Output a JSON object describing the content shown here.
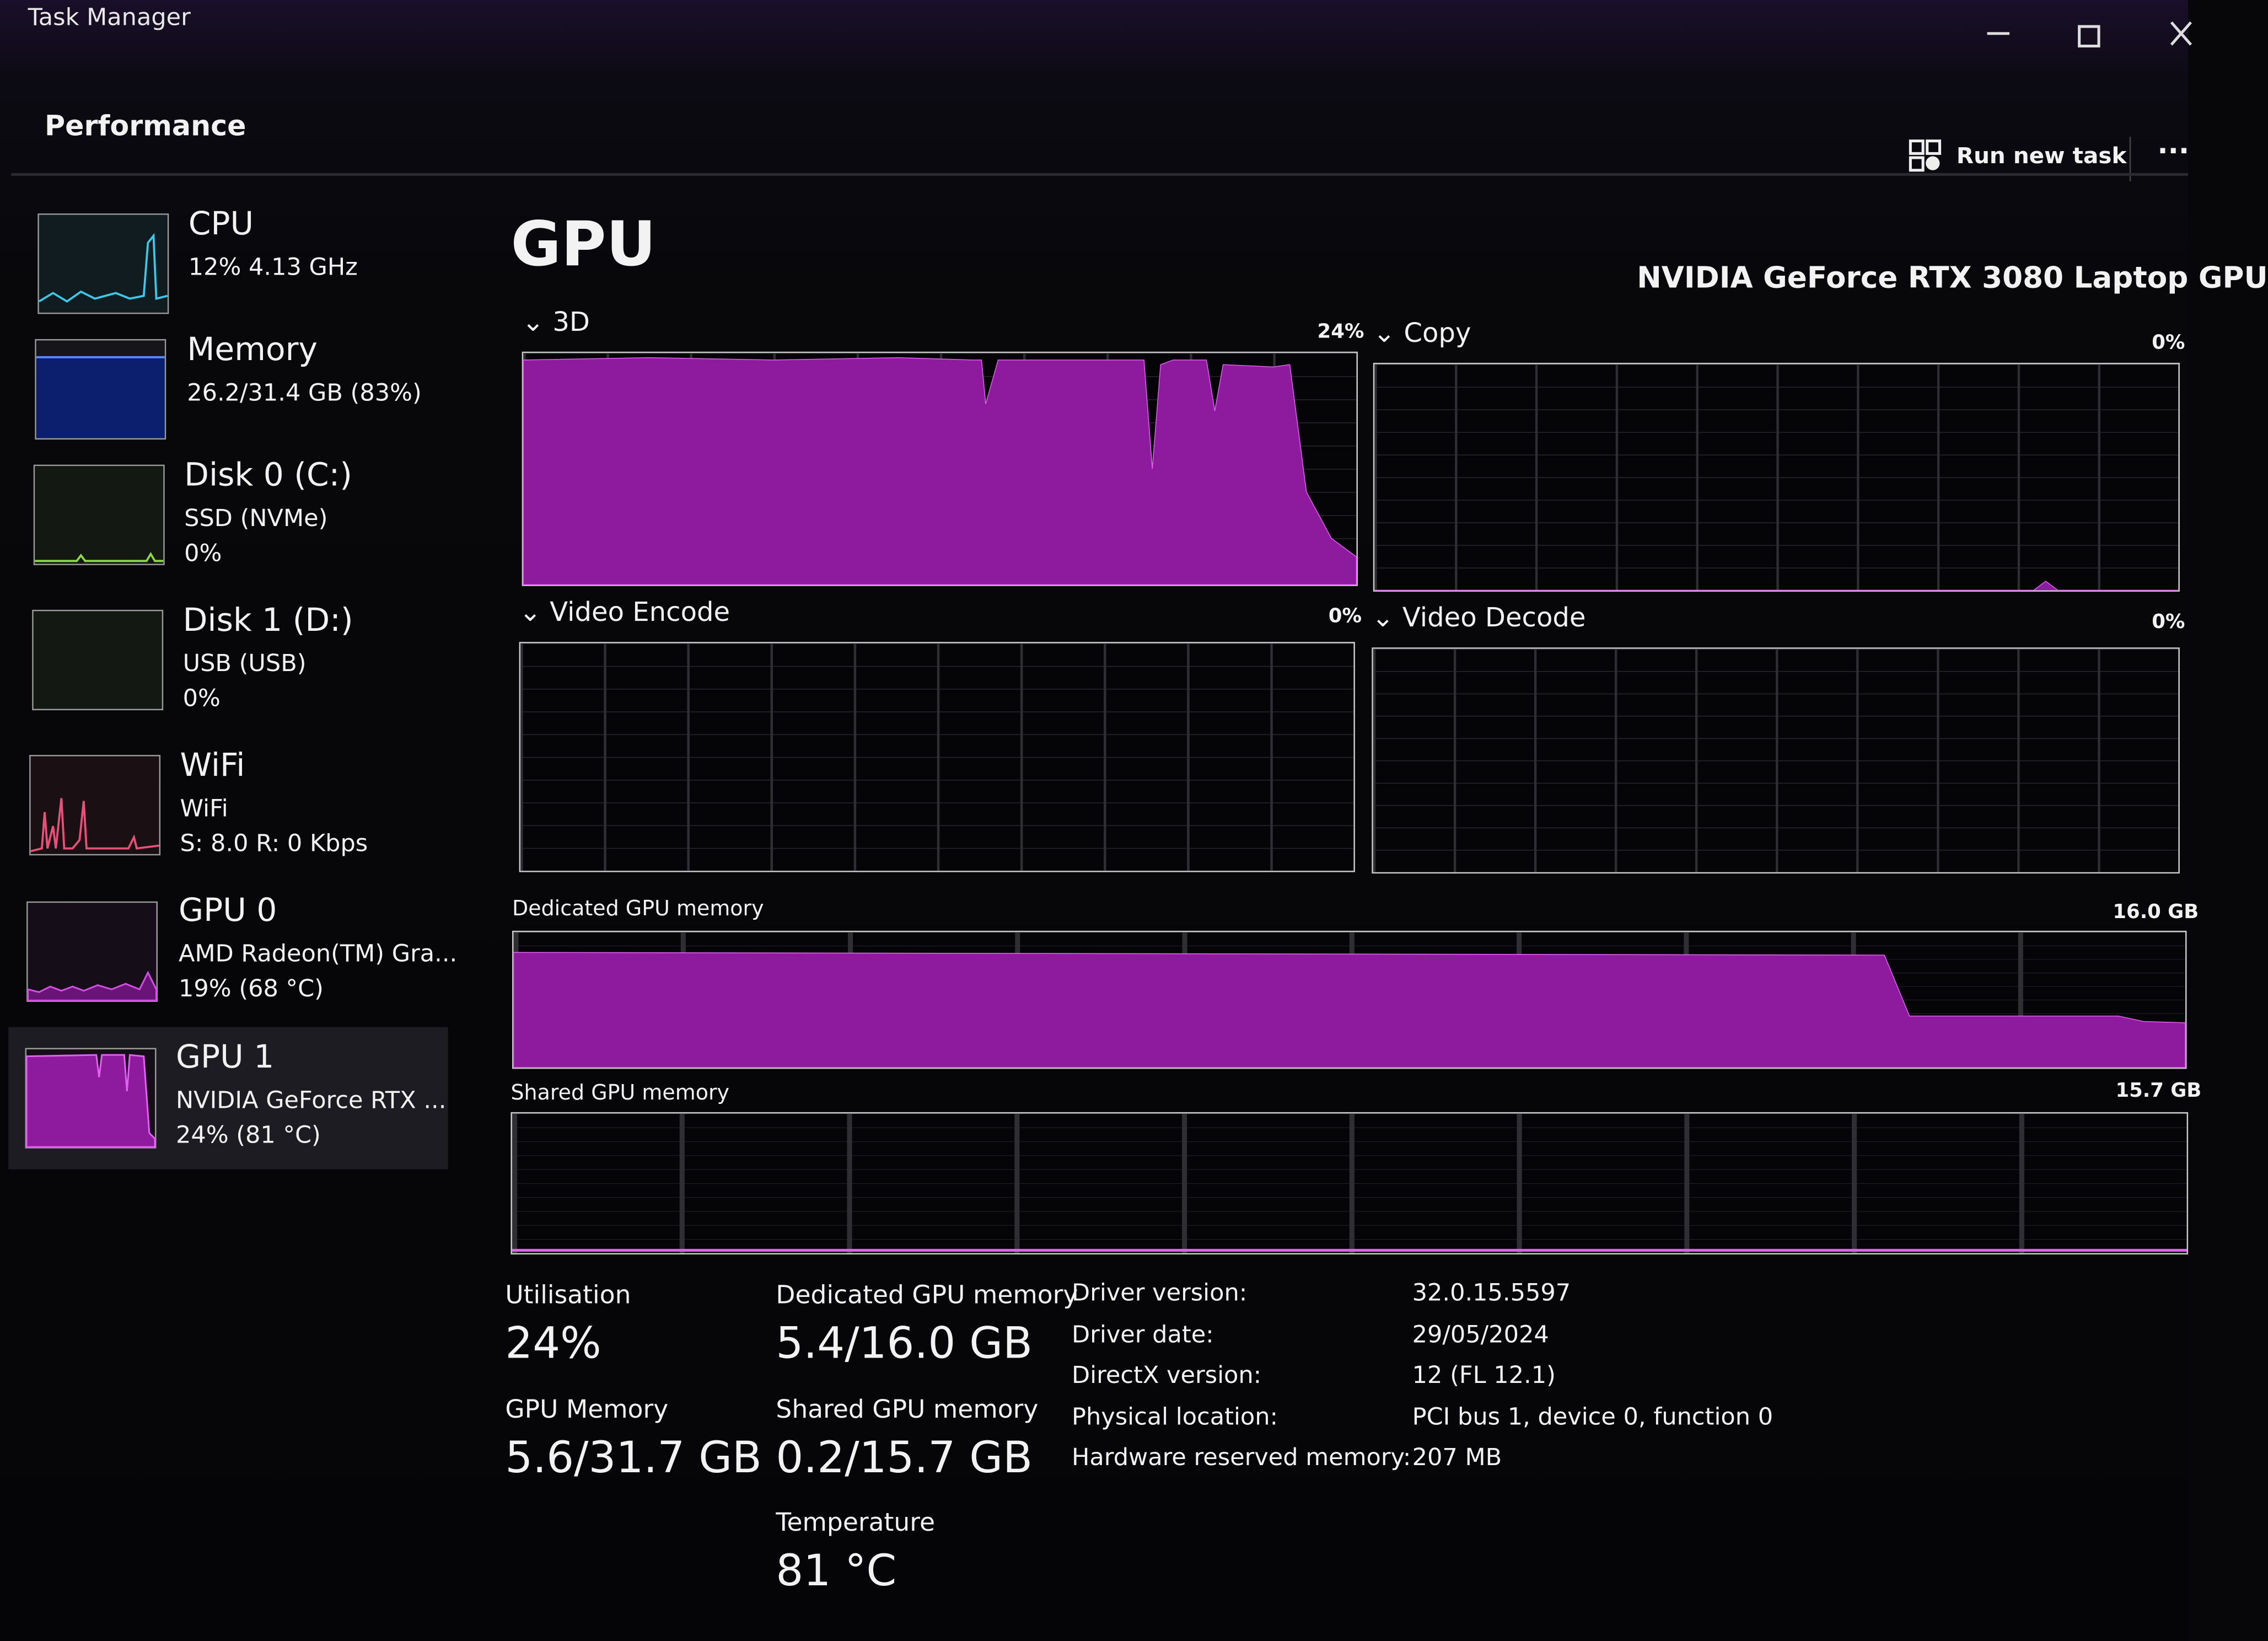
{
  "window": {
    "title": "Task Manager"
  },
  "header": {
    "title": "Performance",
    "run_new_task": "Run new task"
  },
  "sidebar": {
    "items": [
      {
        "name": "CPU",
        "lines": [
          "12%  4.13 GHz"
        ]
      },
      {
        "name": "Memory",
        "lines": [
          "26.2/31.4 GB (83%)"
        ]
      },
      {
        "name": "Disk 0 (C:)",
        "lines": [
          "SSD (NVMe)",
          "0%"
        ]
      },
      {
        "name": "Disk 1 (D:)",
        "lines": [
          "USB (USB)",
          "0%"
        ]
      },
      {
        "name": "WiFi",
        "lines": [
          "WiFi",
          "S: 8.0  R: 0 Kbps"
        ]
      },
      {
        "name": "GPU 0",
        "lines": [
          "AMD Radeon(TM) Gra...",
          "19%  (68 °C)"
        ]
      },
      {
        "name": "GPU 1",
        "lines": [
          "NVIDIA GeForce RTX ...",
          "24%  (81 °C)"
        ]
      }
    ]
  },
  "main": {
    "title": "GPU",
    "device": "NVIDIA GeForce RTX 3080 Laptop GPU",
    "graphs": [
      {
        "label": "3D",
        "value": "24%"
      },
      {
        "label": "Copy",
        "value": "0%"
      },
      {
        "label": "Video Encode",
        "value": "0%"
      },
      {
        "label": "Video Decode",
        "value": "0%"
      }
    ],
    "memory_graphs": [
      {
        "label": "Dedicated GPU memory",
        "max": "16.0 GB"
      },
      {
        "label": "Shared GPU memory",
        "max": "15.7 GB"
      }
    ],
    "stats": [
      {
        "label": "Utilisation",
        "value": "24%"
      },
      {
        "label": "GPU Memory",
        "value": "5.6/31.7 GB"
      },
      {
        "label": "Dedicated GPU memory",
        "value": "5.4/16.0 GB"
      },
      {
        "label": "Shared GPU memory",
        "value": "0.2/15.7 GB"
      },
      {
        "label": "Temperature",
        "value": "81 °C"
      }
    ],
    "details": [
      {
        "label": "Driver version:",
        "value": "32.0.15.5597"
      },
      {
        "label": "Driver date:",
        "value": "29/05/2024"
      },
      {
        "label": "DirectX version:",
        "value": "12 (FL 12.1)"
      },
      {
        "label": "Physical location:",
        "value": "PCI bus 1, device 0, function 0"
      },
      {
        "label": "Hardware reserved memory:",
        "value": "207 MB"
      }
    ]
  }
}
